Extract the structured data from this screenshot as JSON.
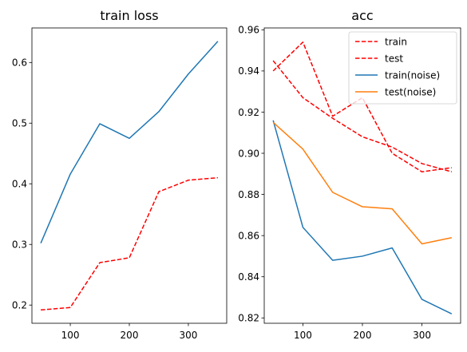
{
  "chart_data": [
    {
      "type": "line",
      "title": "train loss",
      "xlabel": "",
      "ylabel": "",
      "x": [
        50,
        100,
        150,
        200,
        250,
        300,
        350
      ],
      "xlim": [
        35,
        365
      ],
      "ylim": [
        0.17,
        0.657
      ],
      "xticks": [
        100,
        200,
        300
      ],
      "yticks": [
        0.2,
        0.3,
        0.4,
        0.5,
        0.6
      ],
      "ytick_labels": [
        "0.2",
        "0.3",
        "0.4",
        "0.5",
        "0.6"
      ],
      "grid": false,
      "legend": null,
      "series": [
        {
          "color": "#1f77b4",
          "style": "solid",
          "values": [
            0.302,
            0.416,
            0.499,
            0.475,
            0.519,
            0.581,
            0.635
          ]
        },
        {
          "color": "#ff0000",
          "style": "dashed",
          "values": [
            0.192,
            0.196,
            0.27,
            0.278,
            0.387,
            0.406,
            0.41
          ]
        }
      ]
    },
    {
      "type": "line",
      "title": "acc",
      "xlabel": "",
      "ylabel": "",
      "x": [
        50,
        100,
        150,
        200,
        250,
        300,
        350
      ],
      "xlim": [
        35,
        365
      ],
      "ylim": [
        0.8174,
        0.9609
      ],
      "xticks": [
        100,
        200,
        300
      ],
      "yticks": [
        0.82,
        0.84,
        0.86,
        0.88,
        0.9,
        0.92,
        0.94,
        0.96
      ],
      "ytick_labels": [
        "0.82",
        "0.84",
        "0.86",
        "0.88",
        "0.90",
        "0.92",
        "0.94",
        "0.96"
      ],
      "grid": false,
      "legend": "top-right",
      "series": [
        {
          "name": "train",
          "color": "#ff0000",
          "style": "dashed",
          "values": [
            0.94,
            0.954,
            0.918,
            0.927,
            0.9,
            0.891,
            0.893
          ]
        },
        {
          "name": "test",
          "color": "#ff0000",
          "style": "dashed",
          "values": [
            0.945,
            0.927,
            0.917,
            0.908,
            0.903,
            0.895,
            0.891
          ]
        },
        {
          "name": "train(noise)",
          "color": "#1f77b4",
          "style": "solid",
          "values": [
            0.916,
            0.864,
            0.848,
            0.85,
            0.854,
            0.829,
            0.822
          ]
        },
        {
          "name": "test(noise)",
          "color": "#ff7f0e",
          "style": "solid",
          "values": [
            0.915,
            0.902,
            0.881,
            0.874,
            0.873,
            0.856,
            0.859
          ]
        }
      ]
    }
  ]
}
